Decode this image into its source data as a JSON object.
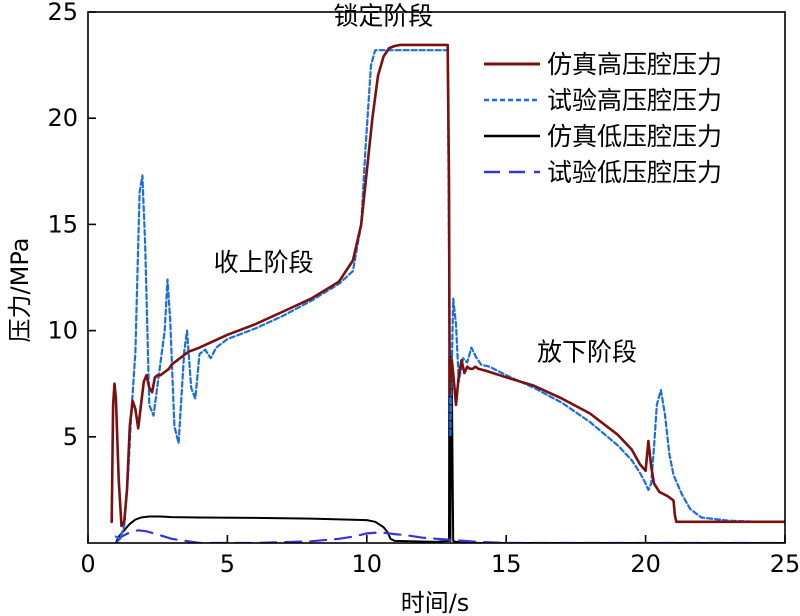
{
  "chart_data": {
    "type": "line",
    "title": "",
    "xlabel": "时间/s",
    "ylabel": "压力/MPa",
    "xlim": [
      0,
      25
    ],
    "ylim": [
      0,
      25
    ],
    "xticks": [
      0,
      5,
      10,
      15,
      20,
      25
    ],
    "yticks": [
      5,
      10,
      15,
      20,
      25
    ],
    "grid": false,
    "legend_position": "top-right",
    "annotations": [
      {
        "text": "锁定阶段",
        "x": 10.6,
        "y": 24.4
      },
      {
        "text": "收上阶段",
        "x": 6.3,
        "y": 12.8
      },
      {
        "text": "放下阶段",
        "x": 17.9,
        "y": 8.6
      }
    ],
    "series": [
      {
        "name": "仿真高压腔压力",
        "color": "#7a1010",
        "style": "solid",
        "x": [
          0.85,
          0.9,
          0.95,
          1.0,
          1.1,
          1.2,
          1.3,
          1.4,
          1.5,
          1.6,
          1.7,
          1.8,
          1.9,
          2.0,
          2.1,
          2.2,
          2.3,
          2.4,
          2.5,
          2.6,
          2.7,
          2.8,
          2.9,
          3.0,
          3.2,
          3.4,
          3.6,
          4.0,
          5.0,
          6.0,
          7.0,
          8.0,
          9.0,
          9.5,
          9.8,
          10.0,
          10.2,
          10.4,
          10.6,
          10.8,
          11.0,
          11.2,
          11.4,
          11.6,
          12.0,
          12.5,
          12.9,
          12.95,
          12.97,
          13.05,
          13.1,
          13.2,
          13.3,
          13.4,
          13.5,
          13.6,
          13.7,
          13.8,
          13.9,
          14.0,
          14.3,
          15.0,
          16.0,
          17.0,
          18.0,
          19.0,
          19.5,
          19.8,
          20.0,
          20.1,
          20.2,
          20.3,
          20.5,
          20.8,
          21.0,
          21.05,
          21.1,
          21.5,
          22.0,
          23.0,
          24.0,
          25.0
        ],
        "values": [
          1.0,
          6.5,
          7.5,
          6.8,
          3.0,
          0.8,
          1.0,
          2.5,
          5.5,
          6.7,
          6.3,
          5.4,
          6.5,
          7.6,
          7.9,
          7.3,
          7.1,
          7.8,
          7.9,
          7.9,
          8.0,
          8.1,
          8.2,
          8.4,
          8.6,
          8.8,
          9.0,
          9.2,
          9.8,
          10.3,
          10.9,
          11.5,
          12.3,
          13.3,
          15.0,
          17.5,
          20.0,
          22.0,
          22.9,
          23.3,
          23.4,
          23.45,
          23.45,
          23.45,
          23.45,
          23.45,
          23.45,
          17.0,
          7.0,
          8.6,
          8.0,
          6.5,
          7.9,
          8.6,
          8.0,
          8.3,
          8.2,
          8.2,
          8.3,
          8.2,
          8.1,
          7.8,
          7.4,
          6.8,
          6.1,
          5.1,
          4.4,
          3.7,
          3.4,
          4.8,
          3.6,
          2.8,
          2.4,
          2.2,
          2.0,
          1.3,
          1.0,
          1.0,
          1.0,
          1.0,
          1.0,
          1.0
        ]
      },
      {
        "name": "试验高压腔压力",
        "color": "#1a6fdf",
        "style": "dotted",
        "x": [
          1.0,
          1.15,
          1.3,
          1.45,
          1.55,
          1.7,
          1.85,
          1.95,
          2.05,
          2.2,
          2.35,
          2.55,
          2.75,
          2.85,
          2.95,
          3.1,
          3.25,
          3.45,
          3.55,
          3.7,
          3.85,
          4.0,
          4.2,
          4.4,
          4.6,
          5.0,
          6.0,
          7.0,
          8.0,
          9.0,
          9.5,
          9.8,
          9.95,
          10.05,
          10.15,
          10.3,
          12.8,
          12.9,
          12.95,
          13.0,
          13.1,
          13.2,
          13.3,
          13.45,
          13.6,
          13.75,
          13.9,
          14.1,
          14.4,
          15.0,
          16.0,
          17.0,
          18.0,
          19.0,
          19.5,
          19.8,
          20.0,
          20.1,
          20.2,
          20.3,
          20.4,
          20.55,
          20.7,
          20.85,
          21.0,
          21.3,
          21.6,
          22.0,
          23.0,
          24.0,
          25.0
        ],
        "values": [
          0.3,
          0.2,
          0.8,
          3.5,
          6.0,
          9.0,
          16.5,
          17.3,
          14.0,
          6.5,
          6.0,
          8.0,
          10.0,
          12.4,
          10.5,
          5.5,
          4.7,
          9.0,
          10.0,
          7.3,
          6.8,
          8.9,
          9.1,
          8.7,
          9.2,
          9.6,
          10.1,
          10.7,
          11.4,
          12.2,
          12.8,
          15.0,
          18.5,
          20.5,
          22.5,
          23.2,
          23.2,
          23.2,
          14.0,
          5.0,
          11.5,
          10.3,
          7.6,
          8.7,
          8.5,
          9.2,
          8.8,
          8.4,
          8.3,
          7.9,
          7.3,
          6.6,
          5.7,
          4.6,
          3.9,
          3.3,
          2.8,
          2.5,
          2.8,
          4.5,
          6.5,
          7.2,
          6.0,
          4.2,
          3.2,
          2.3,
          1.6,
          1.2,
          1.05,
          1.0,
          1.0
        ]
      },
      {
        "name": "仿真低压腔压力",
        "color": "#000000",
        "style": "solid",
        "x": [
          1.0,
          1.1,
          1.3,
          1.5,
          1.7,
          1.9,
          2.2,
          2.6,
          3.0,
          4.0,
          6.0,
          8.0,
          10.0,
          10.3,
          10.6,
          10.75,
          10.85,
          11.0,
          12.5,
          12.95,
          12.96,
          13.0,
          13.04,
          13.1,
          13.2,
          14.0,
          15.0,
          25.0
        ],
        "values": [
          0.0,
          0.3,
          0.6,
          0.9,
          1.1,
          1.2,
          1.25,
          1.25,
          1.22,
          1.2,
          1.18,
          1.15,
          1.08,
          1.0,
          0.75,
          0.5,
          0.2,
          0.1,
          0.05,
          0.1,
          8.8,
          0.1,
          9.0,
          0.1,
          0.05,
          0.0,
          0.0,
          0.0
        ]
      },
      {
        "name": "试验低压腔压力",
        "color": "#3535d8",
        "style": "dashed",
        "x": [
          1.0,
          1.2,
          1.5,
          1.8,
          2.1,
          2.5,
          3.0,
          4.0,
          6.0,
          8.0,
          9.0,
          9.5,
          10.0,
          10.5,
          11.0,
          11.5,
          12.0,
          12.5,
          13.0,
          13.5,
          14.0,
          15.0,
          17.0,
          20.0,
          25.0
        ],
        "values": [
          0.0,
          0.3,
          0.5,
          0.6,
          0.55,
          0.4,
          0.2,
          0.0,
          0.0,
          0.08,
          0.2,
          0.3,
          0.45,
          0.5,
          0.42,
          0.35,
          0.25,
          0.2,
          0.15,
          0.1,
          0.05,
          0.0,
          0.0,
          0.0,
          0.0
        ]
      }
    ]
  }
}
